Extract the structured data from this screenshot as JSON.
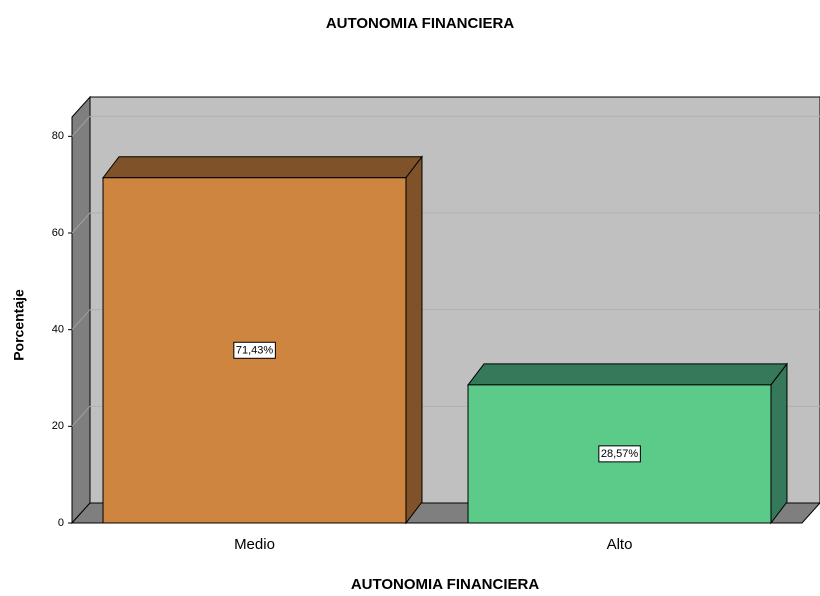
{
  "chart_data": {
    "type": "bar3d",
    "title": "AUTONOMIA FINANCIERA",
    "x_label": "AUTONOMIA FINANCIERA",
    "y_label": "Porcentaje",
    "categories": [
      "Medio",
      "Alto"
    ],
    "values": [
      71.43,
      28.57
    ],
    "value_labels": [
      "71,43%",
      "28,57%"
    ],
    "colors": [
      "#cd853f",
      "#5ccb8a"
    ],
    "side_colors": [
      "#7f5229",
      "#35785a"
    ],
    "ylim": [
      0,
      84
    ],
    "yticks": [
      0,
      20,
      40,
      60,
      80
    ],
    "grid": true
  }
}
